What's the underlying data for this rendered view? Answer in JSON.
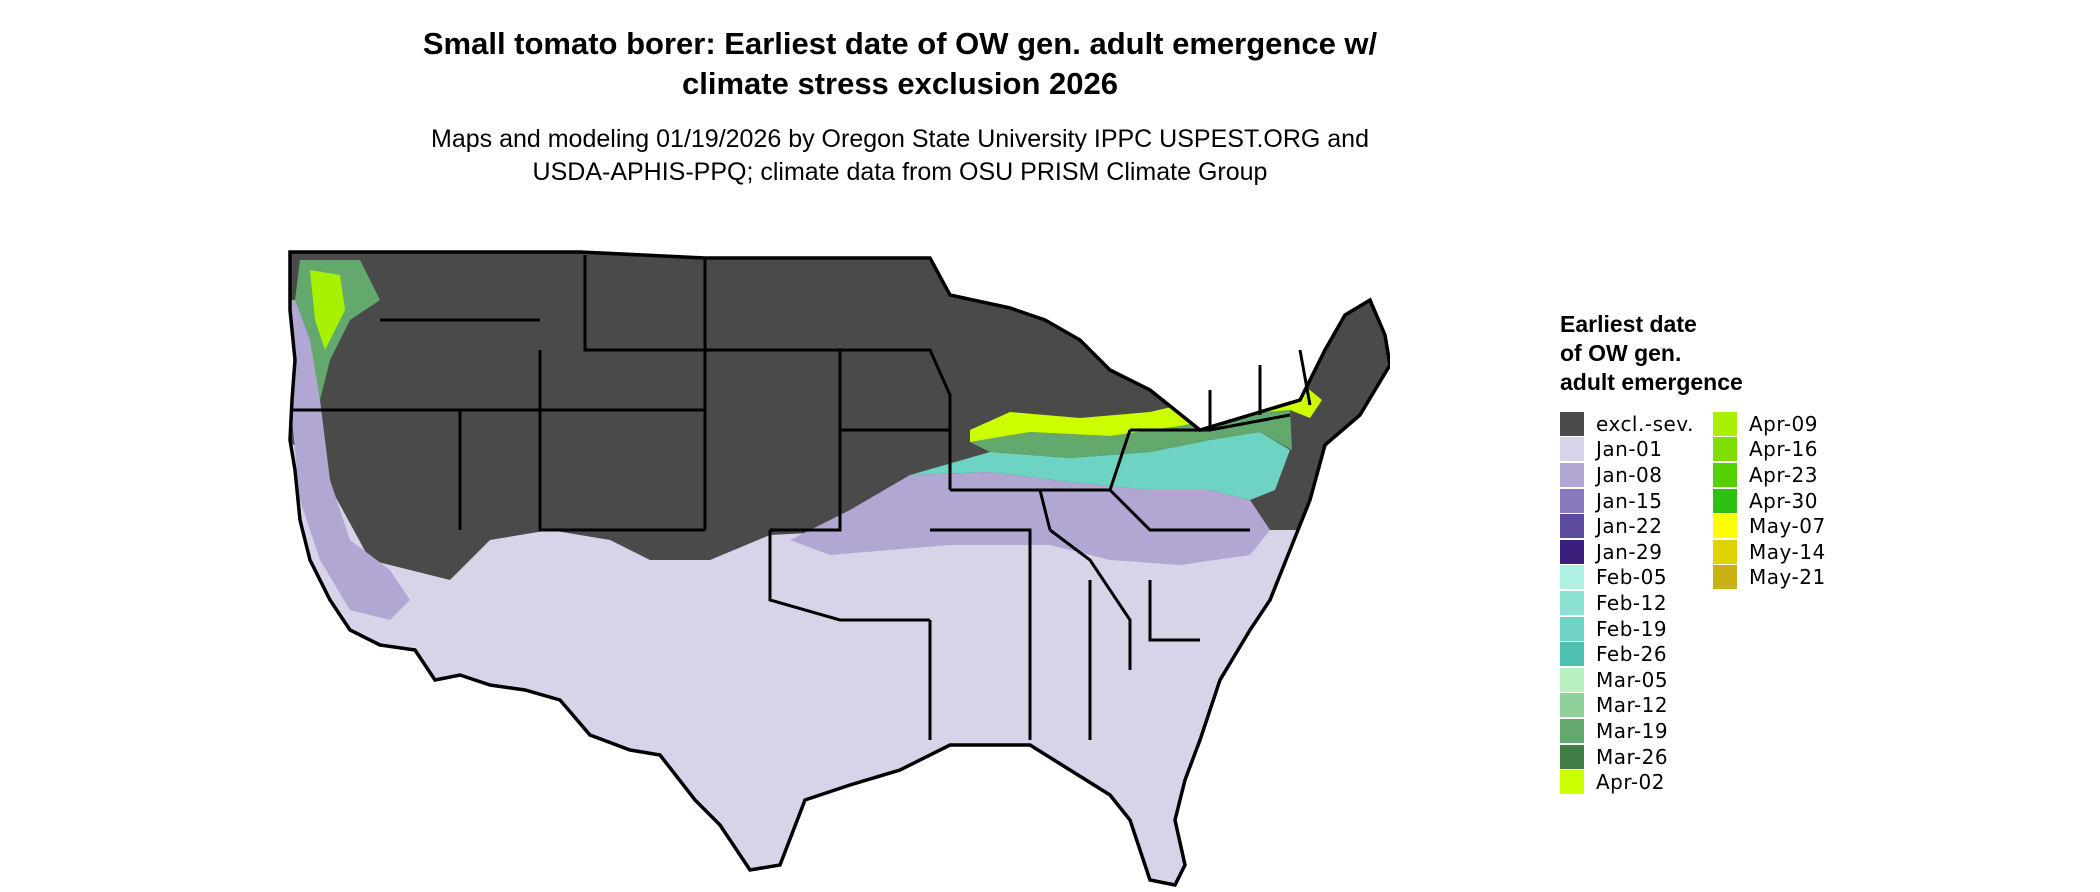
{
  "title": {
    "line1": "Small tomato borer: Earliest date of OW gen. adult emergence w/",
    "line2": "climate stress exclusion 2026"
  },
  "subtitle": {
    "line1": "Maps and modeling 01/19/2026 by Oregon State University IPPC USPEST.ORG and",
    "line2": "USDA-APHIS-PPQ; climate data from OSU PRISM Climate Group"
  },
  "legend": {
    "title_lines": [
      "Earliest date",
      "of OW gen.",
      "adult emergence"
    ],
    "column1": [
      {
        "label": "excl.-sev.",
        "color": "#4a4a4a"
      },
      {
        "label": "Jan-01",
        "color": "#d9d3ea"
      },
      {
        "label": "Jan-08",
        "color": "#b2a6d3"
      },
      {
        "label": "Jan-15",
        "color": "#8a78bd"
      },
      {
        "label": "Jan-22",
        "color": "#5e4a9c"
      },
      {
        "label": "Jan-29",
        "color": "#3b1f7d"
      },
      {
        "label": "Feb-05",
        "color": "#aef0e2"
      },
      {
        "label": "Feb-12",
        "color": "#8ae3d2"
      },
      {
        "label": "Feb-19",
        "color": "#6dd3c2"
      },
      {
        "label": "Feb-26",
        "color": "#4fc1b0"
      },
      {
        "label": "Mar-05",
        "color": "#b8f0c0"
      },
      {
        "label": "Mar-12",
        "color": "#8ed19b"
      },
      {
        "label": "Mar-19",
        "color": "#63a86c"
      },
      {
        "label": "Mar-26",
        "color": "#3f7d44"
      },
      {
        "label": "Apr-02",
        "color": "#ccff00"
      }
    ],
    "column2": [
      {
        "label": "Apr-09",
        "color": "#a6f000"
      },
      {
        "label": "Apr-16",
        "color": "#7fe000"
      },
      {
        "label": "Apr-23",
        "color": "#55d000"
      },
      {
        "label": "Apr-30",
        "color": "#2fc013"
      },
      {
        "label": "May-07",
        "color": "#ffff00"
      },
      {
        "label": "May-14",
        "color": "#e0d400"
      },
      {
        "label": "May-21",
        "color": "#c8b015"
      }
    ]
  },
  "map": {
    "region": "conterminous United States",
    "zones": [
      {
        "name": "excluded",
        "color": "#4a4a4a"
      },
      {
        "name": "southern-jan01",
        "color": "#d9d3ea"
      },
      {
        "name": "midsouth-jan08",
        "color": "#b2a6d3"
      },
      {
        "name": "transition-feb",
        "color": "#6dd3c2"
      },
      {
        "name": "transition-mar",
        "color": "#63a86c"
      },
      {
        "name": "northern-apr",
        "color": "#ccff00"
      }
    ]
  }
}
